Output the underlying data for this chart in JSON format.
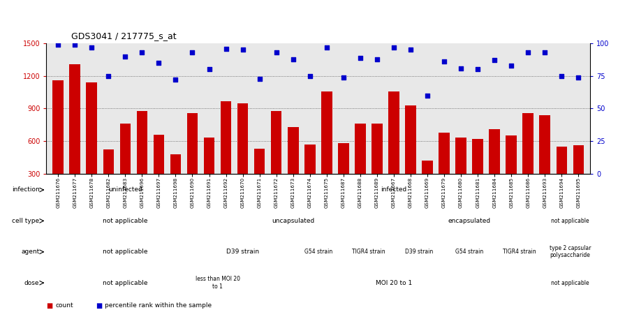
{
  "title": "GDS3041 / 217775_s_at",
  "samples": [
    "GSM211676",
    "GSM211677",
    "GSM211678",
    "GSM211682",
    "GSM211683",
    "GSM211696",
    "GSM211697",
    "GSM211698",
    "GSM211690",
    "GSM211691",
    "GSM211692",
    "GSM211670",
    "GSM211671",
    "GSM211672",
    "GSM211673",
    "GSM211674",
    "GSM211675",
    "GSM211687",
    "GSM211688",
    "GSM211689",
    "GSM211667",
    "GSM211668",
    "GSM211669",
    "GSM211679",
    "GSM211680",
    "GSM211681",
    "GSM211684",
    "GSM211685",
    "GSM211686",
    "GSM211693",
    "GSM211694",
    "GSM211695"
  ],
  "counts": [
    1160,
    1310,
    1140,
    520,
    760,
    880,
    660,
    480,
    860,
    630,
    970,
    950,
    530,
    880,
    730,
    570,
    1060,
    580,
    760,
    760,
    1060,
    930,
    420,
    680,
    630,
    620,
    710,
    650,
    860,
    840,
    550,
    560
  ],
  "percentile_ranks": [
    99,
    99,
    97,
    75,
    90,
    93,
    85,
    72,
    93,
    80,
    96,
    95,
    73,
    93,
    88,
    75,
    97,
    74,
    89,
    88,
    97,
    95,
    60,
    86,
    81,
    80,
    87,
    83,
    93,
    93,
    75,
    74
  ],
  "bar_color": "#cc0000",
  "dot_color": "#0000cc",
  "ylim_left": [
    300,
    1500
  ],
  "ylim_right": [
    0,
    100
  ],
  "yticks_left": [
    300,
    600,
    900,
    1200,
    1500
  ],
  "yticks_right": [
    0,
    25,
    50,
    75,
    100
  ],
  "grid_values": [
    600,
    900,
    1200
  ],
  "chart_bg": "#e8e8e8",
  "annotation_rows": [
    {
      "label": "infection",
      "segments": [
        {
          "text": "uninfected",
          "start": 0,
          "end": 8,
          "color": "#88dd77"
        },
        {
          "text": "infected",
          "start": 8,
          "end": 32,
          "color": "#55cc44"
        }
      ]
    },
    {
      "label": "cell type",
      "segments": [
        {
          "text": "not applicable",
          "start": 0,
          "end": 8,
          "color": "#8888dd"
        },
        {
          "text": "uncapsulated",
          "start": 8,
          "end": 20,
          "color": "#aabbff"
        },
        {
          "text": "encapsulated",
          "start": 20,
          "end": 29,
          "color": "#aabbff"
        },
        {
          "text": "not applicable",
          "start": 29,
          "end": 32,
          "color": "#8888dd"
        }
      ]
    },
    {
      "label": "agent",
      "segments": [
        {
          "text": "not applicable",
          "start": 0,
          "end": 8,
          "color": "#cc77cc"
        },
        {
          "text": "D39 strain",
          "start": 8,
          "end": 14,
          "color": "#ee99ee"
        },
        {
          "text": "G54 strain",
          "start": 14,
          "end": 17,
          "color": "#ee99ee"
        },
        {
          "text": "TIGR4 strain",
          "start": 17,
          "end": 20,
          "color": "#ee99ee"
        },
        {
          "text": "D39 strain",
          "start": 20,
          "end": 23,
          "color": "#ee99ee"
        },
        {
          "text": "G54 strain",
          "start": 23,
          "end": 26,
          "color": "#ee99ee"
        },
        {
          "text": "TIGR4 strain",
          "start": 26,
          "end": 29,
          "color": "#ee99ee"
        },
        {
          "text": "type 2 capsular\npolysaccharide",
          "start": 29,
          "end": 32,
          "color": "#cc77cc"
        }
      ]
    },
    {
      "label": "dose",
      "segments": [
        {
          "text": "not applicable",
          "start": 0,
          "end": 8,
          "color": "#f0ddb0"
        },
        {
          "text": "less than MOI 20\nto 1",
          "start": 8,
          "end": 11,
          "color": "#ddaa55"
        },
        {
          "text": "MOI 20 to 1",
          "start": 11,
          "end": 29,
          "color": "#ddaa55"
        },
        {
          "text": "not applicable",
          "start": 29,
          "end": 32,
          "color": "#f0ddb0"
        }
      ]
    }
  ],
  "legend_items": [
    {
      "color": "#cc0000",
      "marker": "s",
      "label": "count"
    },
    {
      "color": "#0000cc",
      "marker": "s",
      "label": "percentile rank within the sample"
    }
  ]
}
